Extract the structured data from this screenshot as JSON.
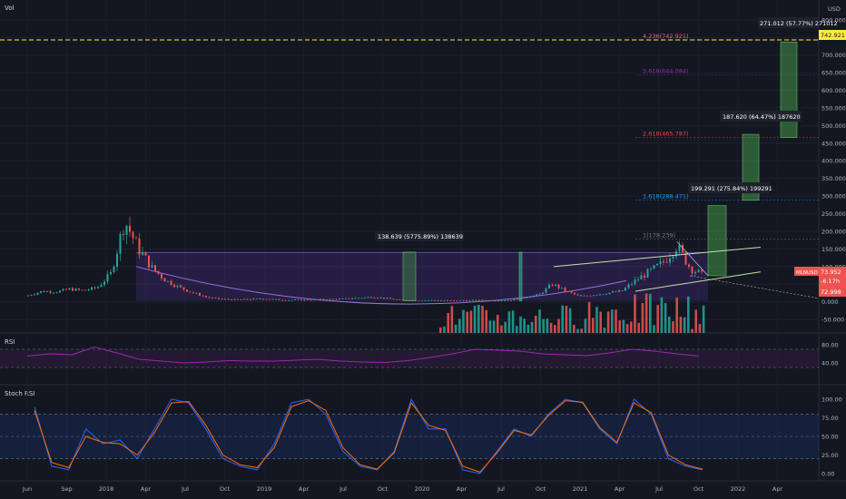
{
  "panes": {
    "main_label": "Vol",
    "currency": "USD",
    "rsi_label": "RSI",
    "stoch_label": "Stoch RSI"
  },
  "price_axis": {
    "ticks": [
      "800.000",
      "750.000",
      "700.000",
      "650.000",
      "600.000",
      "550.000",
      "500.000",
      "450.000",
      "400.000",
      "350.000",
      "300.000",
      "250.000",
      "200.000",
      "150.000",
      "100.000",
      "50.000",
      "0.000",
      "-50.000"
    ],
    "target_price": "742.921",
    "symbol_tag": "MLNUSD",
    "current_price": "73.952",
    "change": "-6.17h",
    "low_price": "72.998"
  },
  "rsi_axis": {
    "ticks": [
      "80.00",
      "40.00"
    ]
  },
  "stoch_axis": {
    "ticks": [
      "100.00",
      "75.00",
      "50.00",
      "25.00",
      "0.00"
    ]
  },
  "time_axis": {
    "labels": [
      "Jun",
      "Sep",
      "2018",
      "Apr",
      "Jul",
      "Oct",
      "2019",
      "Apr",
      "Jul",
      "Oct",
      "2020",
      "Apr",
      "Jul",
      "Oct",
      "2021",
      "Apr",
      "Jul",
      "Oct",
      "2022",
      "Apr"
    ]
  },
  "annotations": {
    "measure_1": "138.639 (5775.89%) 138639",
    "measure_2": "199.291 (275.84%) 199291",
    "measure_3": "187.620 (64.47%) 187620",
    "measure_4": "271.012 (57.77%) 271012"
  },
  "fib_levels": [
    {
      "label": "4.236(742.921)",
      "value": 742.921,
      "color": "#f06292"
    },
    {
      "label": "3.618(644.084)",
      "value": 644.084,
      "color": "#9c27b0"
    },
    {
      "label": "2.618(465.787)",
      "value": 465.787,
      "color": "#f44336"
    },
    {
      "label": "1.618(288.471)",
      "value": 288.471,
      "color": "#2196f3"
    },
    {
      "label": "1(178.239)",
      "value": 178.239,
      "color": "#787b86"
    }
  ],
  "colors": {
    "up": "#26a69a",
    "down": "#ef5350",
    "rsi_line": "#9c27b0",
    "stoch_k": "#2962ff",
    "stoch_d": "#ff6d00",
    "target_line": "#ffeb3b",
    "cup_fill": "#673ab7"
  },
  "chart_data": {
    "type": "candlestick",
    "symbol": "MLNUSD",
    "timeframe": "weekly",
    "x_range": [
      "2017-06",
      "2022-04"
    ],
    "ylim": [
      -60,
      820
    ],
    "price_path": [
      {
        "date": "2017-06",
        "price": 18
      },
      {
        "date": "2017-07",
        "price": 30
      },
      {
        "date": "2017-08",
        "price": 28
      },
      {
        "date": "2017-09",
        "price": 36
      },
      {
        "date": "2017-10",
        "price": 32
      },
      {
        "date": "2017-11",
        "price": 40
      },
      {
        "date": "2017-12",
        "price": 80
      },
      {
        "date": "2018-01",
        "price": 230
      },
      {
        "date": "2018-02",
        "price": 150
      },
      {
        "date": "2018-03",
        "price": 95
      },
      {
        "date": "2018-04",
        "price": 60
      },
      {
        "date": "2018-05",
        "price": 40
      },
      {
        "date": "2018-06",
        "price": 25
      },
      {
        "date": "2018-07",
        "price": 12
      },
      {
        "date": "2018-08",
        "price": 8
      },
      {
        "date": "2018-09",
        "price": 6
      },
      {
        "date": "2018-10",
        "price": 7
      },
      {
        "date": "2018-11",
        "price": 9
      },
      {
        "date": "2018-12",
        "price": 6
      },
      {
        "date": "2019-01",
        "price": 5
      },
      {
        "date": "2019-03",
        "price": 6
      },
      {
        "date": "2019-05",
        "price": 9
      },
      {
        "date": "2019-07",
        "price": 14
      },
      {
        "date": "2019-09",
        "price": 5
      },
      {
        "date": "2019-11",
        "price": 4
      },
      {
        "date": "2020-01",
        "price": 3
      },
      {
        "date": "2020-03",
        "price": 4
      },
      {
        "date": "2020-05",
        "price": 5
      },
      {
        "date": "2020-07",
        "price": 20
      },
      {
        "date": "2020-08",
        "price": 50
      },
      {
        "date": "2020-09",
        "price": 30
      },
      {
        "date": "2020-10",
        "price": 15
      },
      {
        "date": "2020-11",
        "price": 20
      },
      {
        "date": "2020-12",
        "price": 25
      },
      {
        "date": "2021-01",
        "price": 30
      },
      {
        "date": "2021-02",
        "price": 60
      },
      {
        "date": "2021-03",
        "price": 85
      },
      {
        "date": "2021-04",
        "price": 110
      },
      {
        "date": "2021-05",
        "price": 160
      },
      {
        "date": "2021-06",
        "price": 95
      },
      {
        "date": "2021-07",
        "price": 74
      }
    ],
    "rsi": [
      55,
      60,
      58,
      75,
      62,
      48,
      44,
      40,
      42,
      45,
      44,
      44,
      46,
      48,
      44,
      42,
      41,
      45,
      52,
      60,
      70,
      68,
      66,
      60,
      58,
      56,
      62,
      70,
      66,
      60,
      55
    ],
    "stoch_k": [
      90,
      10,
      5,
      60,
      40,
      45,
      20,
      60,
      100,
      95,
      60,
      20,
      10,
      5,
      40,
      95,
      100,
      80,
      30,
      10,
      5,
      30,
      100,
      60,
      60,
      5,
      0,
      30,
      60,
      50,
      80,
      100,
      95,
      60,
      40,
      100,
      80,
      20,
      10,
      5
    ],
    "stoch_d": [
      85,
      15,
      8,
      50,
      42,
      40,
      25,
      55,
      95,
      97,
      65,
      25,
      12,
      8,
      35,
      90,
      98,
      85,
      35,
      12,
      6,
      28,
      95,
      65,
      58,
      10,
      2,
      28,
      58,
      52,
      78,
      98,
      96,
      62,
      42,
      95,
      82,
      25,
      12,
      6
    ]
  }
}
